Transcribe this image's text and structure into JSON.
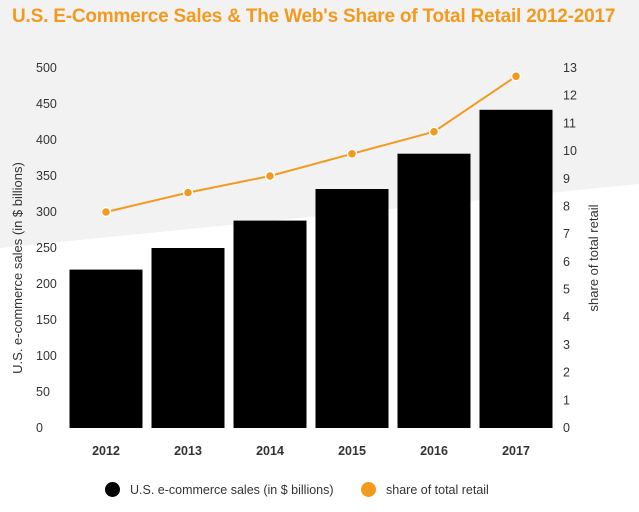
{
  "chart_data": {
    "type": "bar",
    "title": "U.S. E-Commerce Sales & The Web's Share of Total Retail 2012-2017",
    "categories": [
      "2012",
      "2013",
      "2014",
      "2015",
      "2016",
      "2017"
    ],
    "series": [
      {
        "name": "U.S. e-commerce sales (in $ billions)",
        "type": "bar",
        "axis": "left",
        "color": "#000000",
        "values": [
          220,
          250,
          288,
          332,
          381,
          442
        ]
      },
      {
        "name": "share of total retail",
        "type": "line",
        "axis": "right",
        "color": "#f39a1e",
        "values": [
          7.8,
          8.5,
          9.1,
          9.9,
          10.7,
          12.7
        ]
      }
    ],
    "ylabel": "U.S. e-commerce sales (in $ billions)",
    "ylim": [
      0,
      500
    ],
    "yticks": [
      "0",
      "50",
      "100",
      "150",
      "200",
      "250",
      "300",
      "350",
      "400",
      "450",
      "500"
    ],
    "y2label": "share of total retail",
    "y2lim": [
      0,
      13
    ],
    "y2ticks": [
      "0",
      "1",
      "2",
      "3",
      "4",
      "5",
      "6",
      "7",
      "8",
      "9",
      "10",
      "11",
      "12",
      "13"
    ],
    "grid": false,
    "legend_position": "bottom"
  }
}
